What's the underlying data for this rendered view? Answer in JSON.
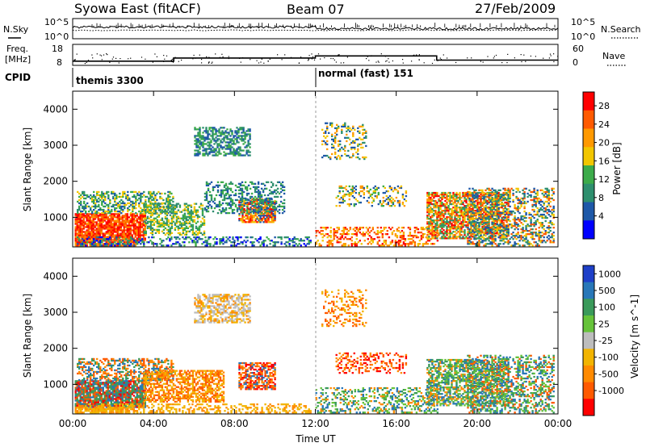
{
  "header": {
    "station": "Syowa East (fitACF)",
    "beam": "Beam 07",
    "date": "27/Feb/2009"
  },
  "top_panel_labels": {
    "nsky": "N.Sky",
    "nsearch": "N.Search",
    "freq": "Freq.",
    "freq_unit": "[MHz]",
    "nave": "Nave",
    "cpid": "CPID",
    "nsky_ticks": [
      "10^5",
      "10^0"
    ],
    "nsearch_ticks": [
      "10^5",
      "10^0"
    ],
    "freq_ticks": [
      "18",
      "8"
    ],
    "nave_ticks": [
      "60",
      "0"
    ]
  },
  "cpid_segments": [
    {
      "label": "themis 3300",
      "start_hour": 0
    },
    {
      "label": "normal (fast) 151",
      "start_hour": 12
    }
  ],
  "chart_data": [
    {
      "type": "heatmap",
      "name": "power",
      "xlabel": "Time UT",
      "ylabel": "Slant Range [km]",
      "colorbar_label": "Power [dB]",
      "x_ticks": [
        "00:00",
        "04:00",
        "08:00",
        "12:00",
        "16:00",
        "20:00",
        "00:00"
      ],
      "xlim_hours": [
        0,
        24
      ],
      "ylim_km": [
        180,
        4500
      ],
      "y_ticks": [
        1000,
        2000,
        3000,
        4000
      ],
      "colorbar_ticks": [
        "28",
        "24",
        "20",
        "16",
        "12",
        "8",
        "4"
      ],
      "colorbar_colors": [
        "#ff0000",
        "#ff5a00",
        "#ff9900",
        "#f2c600",
        "#3cab4a",
        "#2e8f6e",
        "#1e58a8",
        "#0000ff"
      ]
    },
    {
      "type": "heatmap",
      "name": "velocity",
      "xlabel": "Time UT",
      "ylabel": "Slant Range [km]",
      "colorbar_label": "Velocity [m s^-1]",
      "x_ticks": [
        "00:00",
        "04:00",
        "08:00",
        "12:00",
        "16:00",
        "20:00",
        "00:00"
      ],
      "xlim_hours": [
        0,
        24
      ],
      "ylim_km": [
        180,
        4500
      ],
      "y_ticks": [
        1000,
        2000,
        3000,
        4000
      ],
      "colorbar_ticks": [
        "1000",
        "500",
        "100",
        "25",
        "-25",
        "-100",
        "-500",
        "-1000"
      ],
      "colorbar_colors": [
        "#1e3fc8",
        "#2877b8",
        "#3a9a5a",
        "#66c33a",
        "#bdbdbd",
        "#f2b400",
        "#ff8a00",
        "#ff5a00",
        "#ff0000"
      ]
    },
    {
      "type": "line",
      "name": "frequency",
      "ylabel": "Freq. [MHz]",
      "x_hours": [
        0,
        5,
        5,
        12,
        12,
        18,
        18,
        24
      ],
      "y_mhz": [
        10.0,
        10.0,
        11.5,
        11.5,
        12.5,
        12.5,
        10.5,
        10.5
      ],
      "ylim": [
        8,
        18
      ]
    }
  ]
}
